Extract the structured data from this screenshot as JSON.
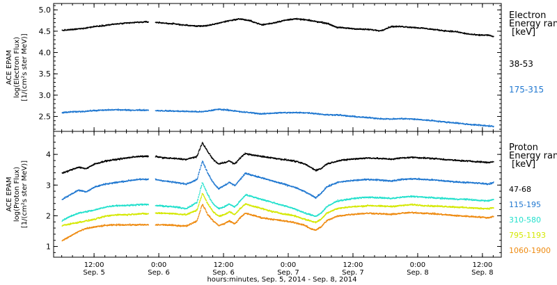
{
  "chart_data": [
    {
      "type": "scatter",
      "panel": "electron",
      "ylabel": [
        "ACE EPAM",
        "log(Electron Flux)",
        "[1/(cm²s ster MeV)]"
      ],
      "ylim": [
        2.15,
        5.15
      ],
      "yticks": [
        2.5,
        3.0,
        3.5,
        4.0,
        4.5,
        5.0
      ],
      "yticklabels": [
        "2.5",
        "3.0",
        "3.5",
        "4.0",
        "4.5",
        "5.0"
      ],
      "legend": {
        "title": [
          "Electron",
          "Energy range",
          "[keV]"
        ],
        "entries": [
          {
            "label": "38-53",
            "color": "#000000"
          },
          {
            "label": "175-315",
            "color": "#1f77d0"
          }
        ]
      },
      "series": [
        {
          "label": "38-53",
          "color": "#000000",
          "gaps": [
            [
              32,
              34.5
            ]
          ],
          "x": [
            0,
            4,
            8,
            12,
            16,
            20,
            24,
            28,
            32,
            34.5,
            38,
            42,
            46,
            50,
            54,
            58,
            62,
            66,
            70,
            74,
            78,
            82,
            86,
            90,
            94,
            98,
            102,
            106,
            110,
            114,
            118,
            122,
            126,
            130,
            134,
            138,
            142,
            146,
            150,
            154,
            158,
            160
          ],
          "y": [
            4.53,
            4.55,
            4.58,
            4.62,
            4.65,
            4.68,
            4.7,
            4.72,
            4.73,
            4.72,
            4.7,
            4.68,
            4.65,
            4.63,
            4.64,
            4.7,
            4.76,
            4.8,
            4.75,
            4.66,
            4.7,
            4.76,
            4.8,
            4.78,
            4.74,
            4.7,
            4.6,
            4.58,
            4.56,
            4.55,
            4.52,
            4.62,
            4.62,
            4.6,
            4.58,
            4.55,
            4.52,
            4.5,
            4.45,
            4.42,
            4.42,
            4.38
          ]
        },
        {
          "label": "175-315",
          "color": "#1f77d0",
          "gaps": [
            [
              32,
              34.5
            ]
          ],
          "x": [
            0,
            4,
            8,
            12,
            16,
            20,
            24,
            28,
            32,
            34.5,
            40,
            46,
            52,
            58,
            62,
            66,
            70,
            74,
            78,
            82,
            86,
            90,
            94,
            98,
            102,
            106,
            110,
            114,
            118,
            122,
            126,
            130,
            134,
            138,
            142,
            146,
            150,
            154,
            158,
            160
          ],
          "y": [
            2.6,
            2.62,
            2.63,
            2.65,
            2.66,
            2.67,
            2.66,
            2.66,
            2.66,
            2.65,
            2.64,
            2.63,
            2.62,
            2.68,
            2.66,
            2.62,
            2.6,
            2.57,
            2.59,
            2.6,
            2.6,
            2.6,
            2.58,
            2.55,
            2.55,
            2.52,
            2.5,
            2.48,
            2.46,
            2.45,
            2.46,
            2.45,
            2.43,
            2.41,
            2.38,
            2.36,
            2.33,
            2.31,
            2.29,
            2.28
          ]
        }
      ]
    },
    {
      "type": "scatter",
      "panel": "proton",
      "ylabel": [
        "ACE EPAM",
        "log(Proton Flux)",
        "[1/(cm²s ster MeV)]"
      ],
      "ylim": [
        0.65,
        4.75
      ],
      "yticks": [
        1,
        2,
        3,
        4
      ],
      "yticklabels": [
        "1",
        "2",
        "3",
        "4"
      ],
      "xlabel": "hours:minutes, Sep. 5, 2014 - Sep. 8, 2014",
      "xticks": [
        {
          "x": 12,
          "label": "12:00",
          "date": "Sep. 5"
        },
        {
          "x": 36,
          "label": "0:00",
          "date": "Sep. 6"
        },
        {
          "x": 60,
          "label": "12:00",
          "date": "Sep. 6"
        },
        {
          "x": 84,
          "label": "0:00",
          "date": "Sep. 7"
        },
        {
          "x": 108,
          "label": "12:00",
          "date": "Sep. 7"
        },
        {
          "x": 132,
          "label": "0:00",
          "date": "Sep. 8"
        },
        {
          "x": 156,
          "label": "12:00",
          "date": "Sep. 8"
        }
      ],
      "legend": {
        "title": [
          "Proton",
          "Energy range",
          "[keV]"
        ],
        "entries": [
          {
            "label": "47-68",
            "color": "#000000"
          },
          {
            "label": "115-195",
            "color": "#1f77d0"
          },
          {
            "label": "310-580",
            "color": "#22e0cc"
          },
          {
            "label": "795-1193",
            "color": "#d4e800"
          },
          {
            "label": "1060-1900",
            "color": "#ee8a10"
          }
        ]
      },
      "series": [
        {
          "label": "47-68",
          "color": "#000000",
          "gaps": [
            [
              32,
              34.5
            ]
          ],
          "x": [
            0,
            3,
            6,
            9,
            12,
            16,
            20,
            24,
            28,
            32,
            34.5,
            38,
            42,
            46,
            50,
            52,
            54,
            56,
            58,
            60,
            62,
            64,
            66,
            68,
            70,
            74,
            78,
            82,
            86,
            90,
            92,
            94,
            96,
            98,
            102,
            106,
            110,
            114,
            118,
            122,
            126,
            130,
            134,
            138,
            142,
            146,
            150,
            154,
            158,
            160
          ],
          "y": [
            3.4,
            3.5,
            3.6,
            3.55,
            3.7,
            3.8,
            3.85,
            3.9,
            3.95,
            3.95,
            3.95,
            3.9,
            3.88,
            3.85,
            3.95,
            4.4,
            4.1,
            3.85,
            3.7,
            3.75,
            3.8,
            3.7,
            3.9,
            4.05,
            4.0,
            3.95,
            3.9,
            3.85,
            3.8,
            3.7,
            3.6,
            3.5,
            3.55,
            3.7,
            3.8,
            3.85,
            3.88,
            3.9,
            3.88,
            3.86,
            3.9,
            3.92,
            3.9,
            3.88,
            3.85,
            3.82,
            3.8,
            3.78,
            3.75,
            3.78
          ]
        },
        {
          "label": "115-195",
          "color": "#1f77d0",
          "gaps": [
            [
              32,
              34.5
            ]
          ],
          "x": [
            0,
            3,
            6,
            9,
            12,
            16,
            20,
            24,
            28,
            32,
            34.5,
            38,
            42,
            46,
            50,
            52,
            54,
            56,
            58,
            60,
            62,
            64,
            66,
            68,
            70,
            74,
            78,
            82,
            86,
            90,
            92,
            94,
            96,
            98,
            102,
            106,
            110,
            114,
            118,
            122,
            126,
            130,
            134,
            138,
            142,
            146,
            150,
            154,
            158,
            160
          ],
          "y": [
            2.55,
            2.7,
            2.85,
            2.8,
            2.95,
            3.05,
            3.1,
            3.15,
            3.2,
            3.2,
            3.2,
            3.15,
            3.1,
            3.05,
            3.2,
            3.8,
            3.4,
            3.1,
            2.9,
            3.0,
            3.1,
            3.0,
            3.2,
            3.4,
            3.35,
            3.25,
            3.15,
            3.05,
            2.95,
            2.8,
            2.7,
            2.6,
            2.75,
            2.95,
            3.1,
            3.15,
            3.18,
            3.2,
            3.18,
            3.15,
            3.2,
            3.22,
            3.2,
            3.18,
            3.15,
            3.12,
            3.1,
            3.08,
            3.05,
            3.1
          ]
        },
        {
          "label": "310-580",
          "color": "#22e0cc",
          "gaps": [
            [
              32,
              34.5
            ]
          ],
          "x": [
            0,
            3,
            6,
            9,
            12,
            16,
            20,
            24,
            28,
            32,
            34.5,
            38,
            42,
            46,
            50,
            52,
            54,
            56,
            58,
            60,
            62,
            64,
            66,
            68,
            70,
            74,
            78,
            82,
            86,
            90,
            92,
            94,
            96,
            98,
            102,
            106,
            110,
            114,
            118,
            122,
            126,
            130,
            134,
            138,
            142,
            146,
            150,
            154,
            158,
            160
          ],
          "y": [
            1.85,
            2.0,
            2.1,
            2.15,
            2.2,
            2.3,
            2.35,
            2.35,
            2.38,
            2.38,
            2.35,
            2.33,
            2.3,
            2.25,
            2.45,
            3.1,
            2.7,
            2.4,
            2.25,
            2.3,
            2.4,
            2.3,
            2.5,
            2.7,
            2.65,
            2.55,
            2.45,
            2.35,
            2.25,
            2.1,
            2.05,
            2.0,
            2.1,
            2.3,
            2.5,
            2.55,
            2.6,
            2.62,
            2.6,
            2.58,
            2.62,
            2.65,
            2.62,
            2.6,
            2.58,
            2.56,
            2.55,
            2.52,
            2.5,
            2.55
          ]
        },
        {
          "label": "795-1193",
          "color": "#d4e800",
          "gaps": [
            [
              32,
              34.5
            ]
          ],
          "x": [
            0,
            3,
            6,
            9,
            12,
            16,
            20,
            24,
            28,
            32,
            34.5,
            38,
            42,
            46,
            50,
            52,
            54,
            56,
            58,
            60,
            62,
            64,
            66,
            68,
            70,
            74,
            78,
            82,
            86,
            90,
            92,
            94,
            96,
            98,
            102,
            106,
            110,
            114,
            118,
            122,
            126,
            130,
            134,
            138,
            142,
            146,
            150,
            154,
            158,
            160
          ],
          "y": [
            1.7,
            1.75,
            1.8,
            1.85,
            1.9,
            2.0,
            2.05,
            2.05,
            2.08,
            2.08,
            2.1,
            2.1,
            2.08,
            2.05,
            2.2,
            2.75,
            2.4,
            2.15,
            2.0,
            2.05,
            2.15,
            2.05,
            2.25,
            2.4,
            2.35,
            2.25,
            2.15,
            2.08,
            2.02,
            1.9,
            1.85,
            1.8,
            1.9,
            2.1,
            2.25,
            2.3,
            2.32,
            2.35,
            2.33,
            2.32,
            2.35,
            2.38,
            2.35,
            2.33,
            2.32,
            2.3,
            2.28,
            2.26,
            2.25,
            2.28
          ]
        },
        {
          "label": "1060-1900",
          "color": "#ee8a10",
          "gaps": [
            [
              32,
              34.5
            ]
          ],
          "x": [
            0,
            3,
            6,
            9,
            12,
            16,
            20,
            24,
            28,
            32,
            34.5,
            38,
            42,
            46,
            50,
            52,
            54,
            56,
            58,
            60,
            62,
            64,
            66,
            68,
            70,
            74,
            78,
            82,
            86,
            90,
            92,
            94,
            96,
            98,
            102,
            106,
            110,
            114,
            118,
            122,
            126,
            130,
            134,
            138,
            142,
            146,
            150,
            154,
            158,
            160
          ],
          "y": [
            1.2,
            1.35,
            1.5,
            1.6,
            1.65,
            1.7,
            1.72,
            1.72,
            1.72,
            1.72,
            1.72,
            1.72,
            1.7,
            1.68,
            1.85,
            2.4,
            2.05,
            1.85,
            1.7,
            1.75,
            1.85,
            1.75,
            1.95,
            2.1,
            2.05,
            1.95,
            1.9,
            1.85,
            1.8,
            1.7,
            1.6,
            1.55,
            1.65,
            1.85,
            2.0,
            2.05,
            2.08,
            2.1,
            2.08,
            2.06,
            2.1,
            2.12,
            2.1,
            2.08,
            2.05,
            2.02,
            2.0,
            1.98,
            1.95,
            2.0
          ]
        }
      ]
    }
  ],
  "xlim": [
    -3,
    163
  ]
}
